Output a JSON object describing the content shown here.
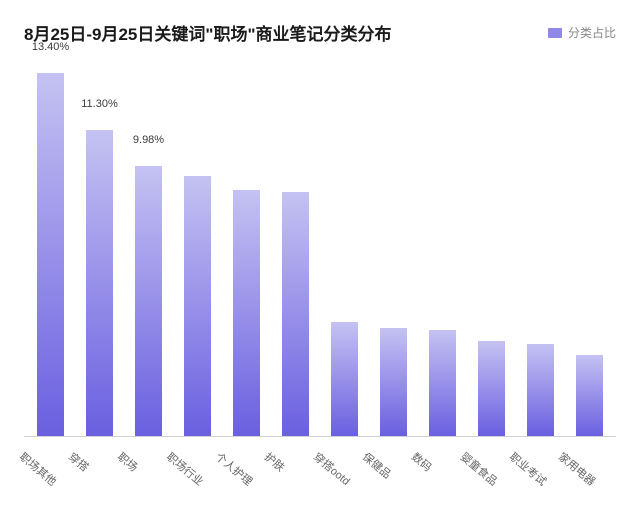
{
  "chart": {
    "type": "bar",
    "title": "8月25日-9月25日关键词\"职场\"商业笔记分类分布",
    "legend": {
      "label": "分类占比",
      "color": "#8f88e6"
    },
    "background_color": "#ffffff",
    "title_color": "#1a1a1a",
    "title_fontsize": 17,
    "label_fontsize": 11,
    "axis_color": "#cfcfd6",
    "ylim": [
      0,
      14
    ],
    "bar_gradient_top": "#c5c2f2",
    "bar_gradient_bottom": "#6a5fe0",
    "bar_width_ratio": 0.55,
    "categories": [
      "职场其他",
      "穿搭",
      "职场",
      "职场行业",
      "个人护理",
      "护肤",
      "穿搭ootd",
      "保健品",
      "数码",
      "婴童食品",
      "职业考试",
      "家用电器"
    ],
    "values": [
      13.4,
      11.3,
      9.98,
      9.6,
      9.1,
      9.0,
      4.2,
      4.0,
      3.9,
      3.5,
      3.4,
      3.0
    ],
    "show_value_label": [
      true,
      true,
      true,
      false,
      false,
      false,
      false,
      false,
      false,
      false,
      false,
      false
    ],
    "value_labels": [
      "13.40%",
      "11.30%",
      "9.98%",
      "",
      "",
      "",
      "",
      "",
      "",
      "",
      "",
      ""
    ]
  }
}
